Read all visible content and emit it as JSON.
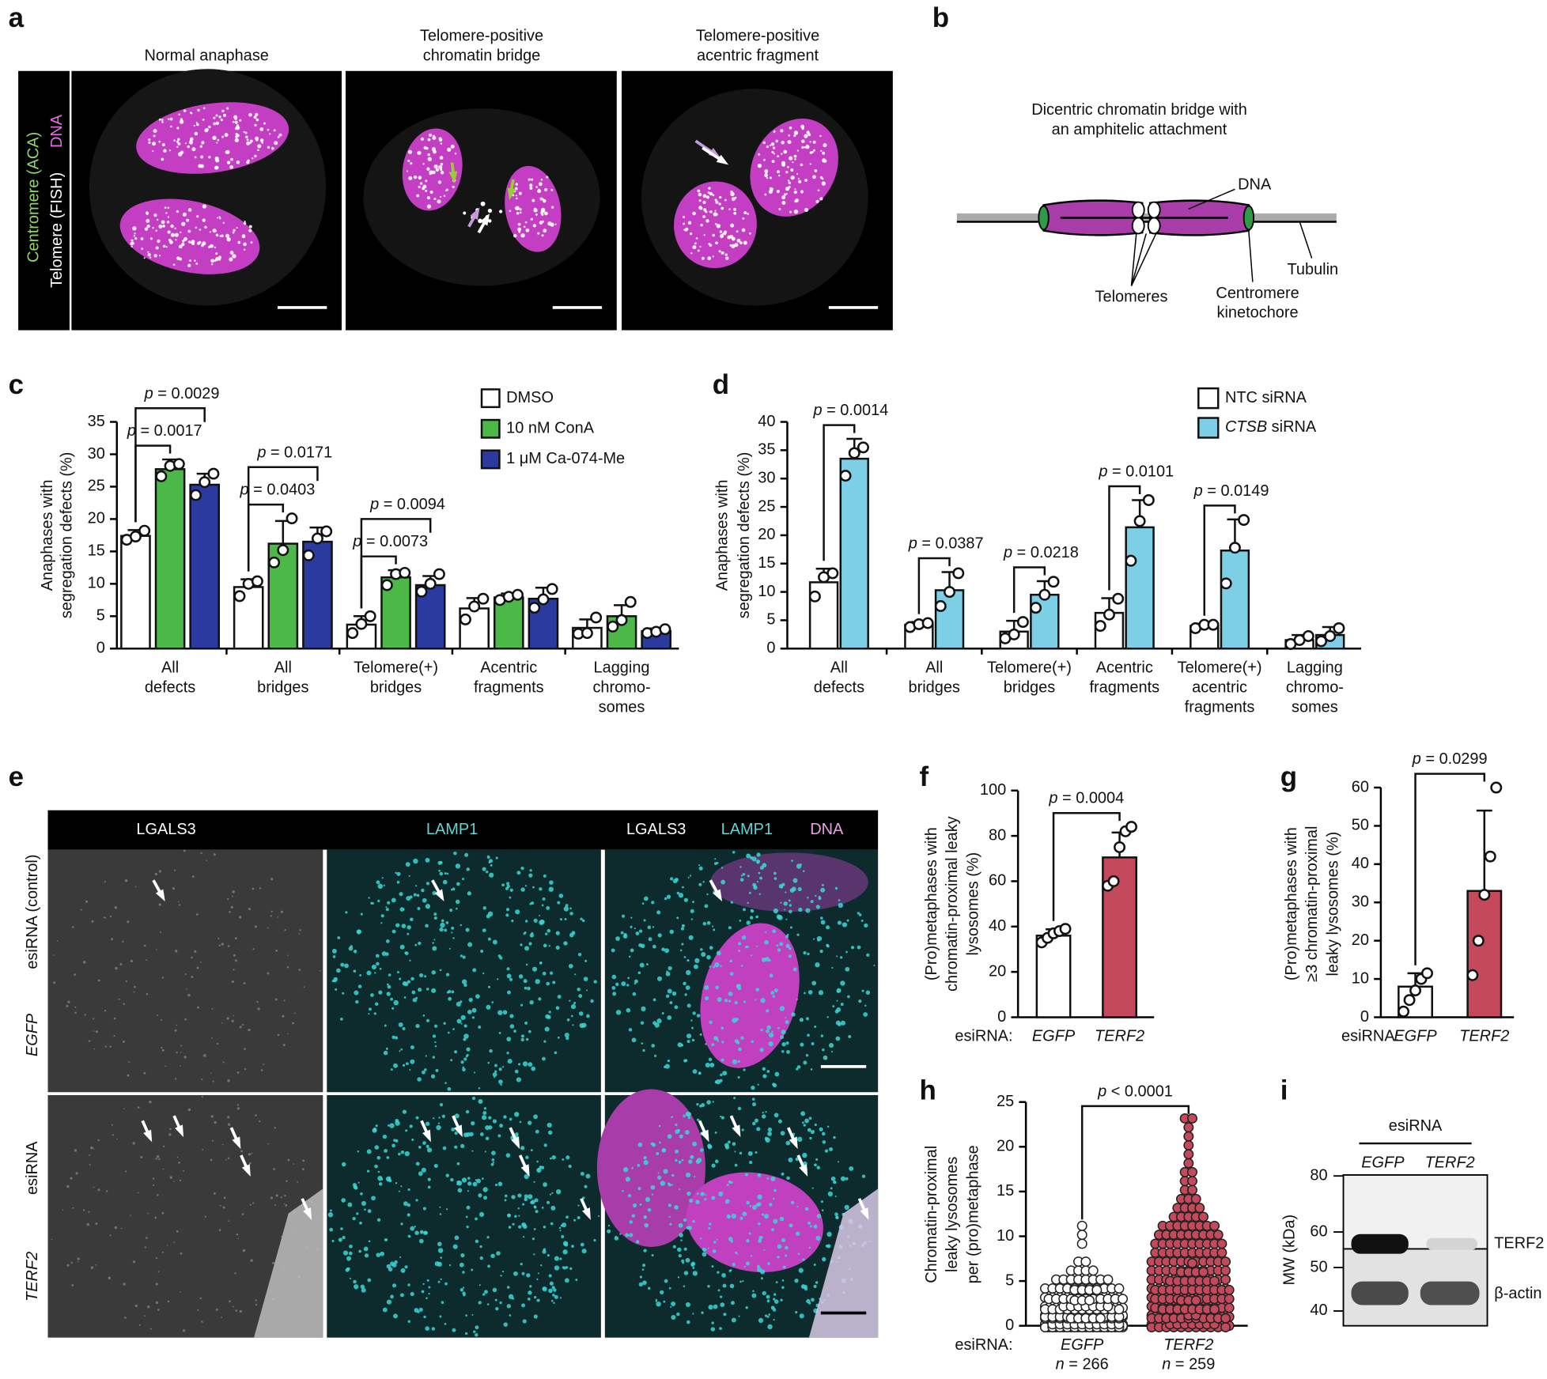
{
  "panel_labels": [
    "a",
    "b",
    "c",
    "d",
    "e",
    "f",
    "g",
    "h",
    "i"
  ],
  "panel_a": {
    "titles": [
      [
        "Normal anaphase"
      ],
      [
        "Telomere-positive",
        "chromatin bridge"
      ],
      [
        "Telomere-positive",
        "acentric fragment"
      ]
    ],
    "channels": [
      "Centromere (ACA)",
      "Telomere (FISH)",
      "DNA"
    ]
  },
  "panel_b": {
    "title": [
      "Dicentric chromatin bridge with",
      "an amphitelic attachment"
    ],
    "dna": "DNA",
    "telomeres": "Telomeres",
    "tubulin": "Tubulin",
    "centromere": [
      "Centromere",
      "kinetochore"
    ]
  },
  "panel_e": {
    "headers": [
      "LGALS3",
      "LAMP1"
    ],
    "merge_headers": [
      "LGALS3",
      "LAMP1",
      "DNA"
    ],
    "rows": [
      [
        "esiRNA (control)",
        "EGFP"
      ],
      [
        "esiRNA",
        "TERF2"
      ]
    ]
  },
  "panel_i": {
    "header": "esiRNA",
    "lanes": [
      "EGFP",
      "TERF2"
    ],
    "bands": [
      "TERF2",
      "β-actin"
    ],
    "ylabel": "MW (kDa)",
    "mw_ticks": [
      80,
      60,
      50,
      40
    ]
  },
  "chart_data": [
    {
      "type": "bar",
      "ylabel": [
        "Anaphases with",
        "segregation defects (%)"
      ],
      "categories": [
        [
          "All",
          "defects"
        ],
        [
          "All",
          "bridges"
        ],
        [
          "Telomere(+)",
          "bridges"
        ],
        [
          "Acentric",
          "fragments"
        ],
        [
          "Lagging",
          "chromo-",
          "somes"
        ]
      ],
      "series": [
        {
          "name": "DMSO",
          "color": "#ffffff",
          "values": [
            17.4,
            9.5,
            3.7,
            6.2,
            3.2
          ],
          "errors": [
            0.9,
            1.2,
            1.3,
            1.6,
            1.3
          ],
          "points": [
            [
              16.8,
              17.3,
              18.2
            ],
            [
              8.1,
              10.0,
              10.4
            ],
            [
              2.4,
              3.8,
              5.0
            ],
            [
              4.5,
              6.5,
              7.7
            ],
            [
              2.3,
              2.4,
              4.8
            ]
          ]
        },
        {
          "name": "10 nM ConA",
          "color": "#4cb848",
          "values": [
            27.7,
            16.2,
            11.0,
            7.9,
            5.0
          ],
          "errors": [
            1.5,
            3.5,
            1.1,
            0.6,
            1.7
          ],
          "points": [
            [
              26.6,
              28.2,
              28.5
            ],
            [
              13.3,
              15.2,
              20.1
            ],
            [
              9.8,
              11.5,
              11.7
            ],
            [
              7.5,
              8.0,
              8.3
            ],
            [
              3.4,
              4.4,
              7.2
            ]
          ]
        },
        {
          "name": "1 μM Ca-074-Me",
          "color": "#2b3a9e",
          "values": [
            25.3,
            16.5,
            9.8,
            7.7,
            2.7
          ],
          "errors": [
            1.7,
            2.2,
            1.4,
            1.7,
            0.4
          ],
          "points": [
            [
              23.7,
              25.7,
              27.0
            ],
            [
              14.4,
              17.0,
              18.1
            ],
            [
              8.8,
              10.0,
              11.5
            ],
            [
              6.3,
              7.6,
              9.2
            ],
            [
              2.4,
              2.6,
              3.0
            ]
          ]
        }
      ],
      "ylim": [
        0,
        35
      ],
      "yticks": [
        0,
        5,
        10,
        15,
        20,
        25,
        30,
        35
      ],
      "annotations": [
        {
          "text": "p = 0.0029",
          "category": 0,
          "series": [
            0,
            2
          ]
        },
        {
          "text": "p = 0.0017",
          "category": 0,
          "series": [
            0,
            1
          ]
        },
        {
          "text": "p = 0.0171",
          "category": 1,
          "series": [
            0,
            2
          ]
        },
        {
          "text": "p = 0.0403",
          "category": 1,
          "series": [
            0,
            1
          ]
        },
        {
          "text": "p = 0.0094",
          "category": 2,
          "series": [
            0,
            2
          ]
        },
        {
          "text": "p = 0.0073",
          "category": 2,
          "series": [
            0,
            1
          ]
        }
      ]
    },
    {
      "type": "bar",
      "ylabel": [
        "Anaphases with",
        "segregation defects (%)"
      ],
      "categories": [
        [
          "All",
          "defects"
        ],
        [
          "All",
          "bridges"
        ],
        [
          "Telomere(+)",
          "bridges"
        ],
        [
          "Acentric",
          "fragments"
        ],
        [
          "Telomere(+)",
          "acentric",
          "fragments"
        ],
        [
          "Lagging",
          "chromo-",
          "somes"
        ]
      ],
      "series": [
        {
          "name": "NTC siRNA",
          "color": "#ffffff",
          "values": [
            11.7,
            4.2,
            3.0,
            6.3,
            4.0,
            1.5
          ],
          "errors": [
            2.4,
            0.5,
            1.9,
            2.6,
            0.4,
            0.9
          ],
          "points": [
            [
              9.2,
              12.6,
              13.3
            ],
            [
              3.8,
              4.3,
              4.5
            ],
            [
              1.8,
              2.5,
              4.7
            ],
            [
              4.0,
              6.0,
              8.8
            ],
            [
              3.6,
              4.2,
              4.2
            ],
            [
              0.8,
              1.5,
              2.2
            ]
          ]
        },
        {
          "name": "CTSB siRNA",
          "color": "#7ccfe5",
          "values": [
            33.5,
            10.3,
            9.5,
            21.4,
            17.3,
            2.4
          ],
          "errors": [
            3.5,
            3.2,
            2.4,
            4.8,
            5.5,
            1.4
          ],
          "points": [
            [
              30.5,
              34.5,
              35.5
            ],
            [
              7.5,
              10.0,
              13.3
            ],
            [
              7.2,
              9.5,
              11.8
            ],
            [
              15.5,
              22.5,
              26.2
            ],
            [
              11.5,
              17.8,
              22.7
            ],
            [
              1.3,
              2.2,
              3.6
            ]
          ]
        }
      ],
      "ylim": [
        0,
        40
      ],
      "yticks": [
        0,
        5,
        10,
        15,
        20,
        25,
        30,
        35,
        40
      ],
      "annotations": [
        {
          "text": "p = 0.0014",
          "category": 0,
          "series": [
            0,
            1
          ]
        },
        {
          "text": "p = 0.0387",
          "category": 1,
          "series": [
            0,
            1
          ]
        },
        {
          "text": "p = 0.0218",
          "category": 2,
          "series": [
            0,
            1
          ]
        },
        {
          "text": "p = 0.0101",
          "category": 3,
          "series": [
            0,
            1
          ]
        },
        {
          "text": "p = 0.0149",
          "category": 4,
          "series": [
            0,
            1
          ]
        }
      ]
    },
    {
      "type": "bar",
      "ylabel": [
        "(Pro)metaphases with",
        "chromatin-proximal leaky",
        "lysosomes (%)"
      ],
      "xlabel": "esiRNA:",
      "categories": [
        "EGFP",
        "TERF2"
      ],
      "values": [
        36,
        70.5
      ],
      "errors": [
        2.8,
        11
      ],
      "colors": [
        "#ffffff",
        "#c4495a"
      ],
      "points": [
        [
          33,
          35,
          37,
          38,
          39
        ],
        [
          58,
          60,
          75,
          82,
          84
        ]
      ],
      "ylim": [
        0,
        100
      ],
      "yticks": [
        0,
        20,
        40,
        60,
        80,
        100
      ],
      "annotations": [
        {
          "text": "p = 0.0004",
          "bars": [
            0,
            1
          ]
        }
      ]
    },
    {
      "type": "bar",
      "ylabel": [
        "(Pro)metaphases with",
        "≥3 chromatin-proximal",
        "leaky lysosomes (%)"
      ],
      "xlabel": "esiRNA:",
      "categories": [
        "EGFP",
        "TERF2"
      ],
      "values": [
        8,
        33
      ],
      "errors": [
        3.5,
        21
      ],
      "colors": [
        "#ffffff",
        "#c4495a"
      ],
      "points": [
        [
          1.5,
          4.5,
          7,
          10,
          11.5
        ],
        [
          11,
          20,
          32,
          42,
          60
        ]
      ],
      "ylim": [
        0,
        60
      ],
      "yticks": [
        0,
        10,
        20,
        30,
        40,
        50,
        60
      ],
      "annotations": [
        {
          "text": "p = 0.0299",
          "bars": [
            0,
            1
          ]
        }
      ]
    },
    {
      "type": "dot",
      "ylabel": [
        "Chromatin-proximal",
        "leaky lysosomes",
        "per (pro)metaphase"
      ],
      "xlabel": "esiRNA:",
      "categories": [
        "EGFP",
        "TERF2"
      ],
      "n_labels": [
        "n = 266",
        "n = 259"
      ],
      "colors": [
        "#ffffff",
        "#c4495a"
      ],
      "y": [
        0,
        1,
        2,
        3,
        4,
        5,
        6,
        7,
        8,
        9,
        10,
        11,
        12,
        13,
        14,
        15,
        16,
        17,
        18,
        19,
        20,
        21,
        22,
        23
      ],
      "counts": [
        [
          109,
          60,
          40,
          25,
          15,
          8,
          4,
          2,
          0,
          1,
          1,
          1,
          0,
          0,
          0,
          0,
          0,
          0,
          0,
          0,
          0,
          0,
          0,
          0
        ],
        [
          40,
          35,
          30,
          25,
          22,
          18,
          15,
          12,
          10,
          10,
          9,
          8,
          5,
          4,
          3,
          2,
          2,
          2,
          1,
          1,
          1,
          1,
          1,
          2
        ]
      ],
      "ylim": [
        0,
        25
      ],
      "yticks": [
        0,
        5,
        10,
        15,
        20,
        25
      ],
      "annotations": [
        {
          "text": "p < 0.0001",
          "bars": [
            0,
            1
          ]
        }
      ]
    }
  ]
}
